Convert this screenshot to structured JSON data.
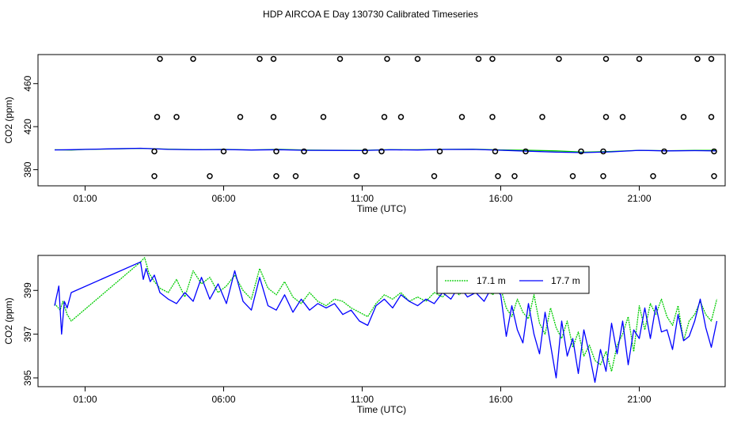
{
  "title": "HDP AIRCOA E  Day 130730  Calibrated Timeseries",
  "colors": {
    "series1": "#00cc00",
    "series2": "#0000ff",
    "axis": "#000000"
  },
  "chart_data": [
    {
      "type": "scatter",
      "xlabel": "Time (UTC)",
      "ylabel": "CO2 (ppm)",
      "xlim": [
        -0.7,
        24.1
      ],
      "ylim": [
        365,
        487
      ],
      "xticks": [
        {
          "v": 1,
          "label": "01:00"
        },
        {
          "v": 6,
          "label": "06:00"
        },
        {
          "v": 11,
          "label": "11:00"
        },
        {
          "v": 16,
          "label": "16:00"
        },
        {
          "v": 21,
          "label": "21:00"
        }
      ],
      "yticks": [
        {
          "v": 380,
          "label": "380"
        },
        {
          "v": 420,
          "label": "420"
        },
        {
          "v": 460,
          "label": "460"
        }
      ],
      "calibration_points": [
        {
          "x": 3.7,
          "y": 483
        },
        {
          "x": 4.9,
          "y": 483
        },
        {
          "x": 7.3,
          "y": 483
        },
        {
          "x": 7.8,
          "y": 483
        },
        {
          "x": 10.2,
          "y": 483
        },
        {
          "x": 11.9,
          "y": 483
        },
        {
          "x": 13.0,
          "y": 483
        },
        {
          "x": 15.2,
          "y": 483
        },
        {
          "x": 15.7,
          "y": 483
        },
        {
          "x": 18.1,
          "y": 483
        },
        {
          "x": 19.8,
          "y": 483
        },
        {
          "x": 21.0,
          "y": 483
        },
        {
          "x": 23.1,
          "y": 483
        },
        {
          "x": 23.6,
          "y": 483
        },
        {
          "x": 3.6,
          "y": 429
        },
        {
          "x": 4.3,
          "y": 429
        },
        {
          "x": 6.6,
          "y": 429
        },
        {
          "x": 7.8,
          "y": 429
        },
        {
          "x": 9.6,
          "y": 429
        },
        {
          "x": 11.8,
          "y": 429
        },
        {
          "x": 12.4,
          "y": 429
        },
        {
          "x": 14.6,
          "y": 429
        },
        {
          "x": 15.7,
          "y": 429
        },
        {
          "x": 17.5,
          "y": 429
        },
        {
          "x": 19.8,
          "y": 429
        },
        {
          "x": 20.4,
          "y": 429
        },
        {
          "x": 22.6,
          "y": 429
        },
        {
          "x": 23.6,
          "y": 429
        },
        {
          "x": 3.5,
          "y": 397
        },
        {
          "x": 6.0,
          "y": 397
        },
        {
          "x": 7.9,
          "y": 397
        },
        {
          "x": 8.9,
          "y": 397
        },
        {
          "x": 11.1,
          "y": 397
        },
        {
          "x": 11.7,
          "y": 397
        },
        {
          "x": 13.8,
          "y": 397
        },
        {
          "x": 15.8,
          "y": 397
        },
        {
          "x": 16.9,
          "y": 397
        },
        {
          "x": 18.9,
          "y": 397
        },
        {
          "x": 19.7,
          "y": 397
        },
        {
          "x": 21.9,
          "y": 397
        },
        {
          "x": 23.7,
          "y": 397
        },
        {
          "x": 3.5,
          "y": 374
        },
        {
          "x": 5.5,
          "y": 374
        },
        {
          "x": 7.9,
          "y": 374
        },
        {
          "x": 8.6,
          "y": 374
        },
        {
          "x": 10.8,
          "y": 374
        },
        {
          "x": 13.6,
          "y": 374
        },
        {
          "x": 15.9,
          "y": 374
        },
        {
          "x": 16.5,
          "y": 374
        },
        {
          "x": 18.6,
          "y": 374
        },
        {
          "x": 19.7,
          "y": 374
        },
        {
          "x": 21.5,
          "y": 374
        },
        {
          "x": 23.7,
          "y": 374
        }
      ],
      "series": [
        {
          "x": [
            -0.1,
            0.5,
            1.0,
            2.0,
            3.0,
            4.0,
            5.0,
            6.0,
            7.0,
            8.0,
            9.0,
            10.0,
            11.0,
            12.0,
            13.0,
            14.0,
            15.0,
            16.0,
            17.0,
            18.0,
            19.0,
            20.0,
            21.0,
            22.0,
            23.0,
            23.8
          ],
          "y": [
            398.5,
            398.3,
            398.8,
            399.3,
            399.8,
            399.1,
            398.6,
            398.9,
            398.4,
            398.9,
            398.2,
            398.1,
            398.0,
            398.6,
            398.5,
            398.9,
            399.0,
            398.4,
            398.1,
            397.5,
            396.3,
            397.0,
            398.0,
            397.6,
            397.9,
            398.0
          ],
          "color": "#00cc00"
        },
        {
          "x": [
            -0.1,
            0.5,
            1.0,
            2.0,
            3.0,
            4.0,
            5.0,
            6.0,
            7.0,
            8.0,
            9.0,
            10.0,
            11.0,
            12.0,
            13.0,
            14.0,
            15.0,
            16.0,
            17.0,
            18.0,
            19.0,
            20.0,
            21.0,
            22.0,
            23.0,
            23.8
          ],
          "y": [
            398.4,
            398.6,
            398.9,
            399.4,
            399.9,
            398.9,
            398.5,
            398.7,
            398.3,
            398.6,
            398.0,
            397.9,
            397.8,
            398.5,
            398.3,
            398.8,
            398.9,
            398.1,
            397.2,
            396.3,
            395.9,
            396.6,
            398.0,
            397.5,
            397.7,
            397.5
          ],
          "color": "#0000ff"
        }
      ]
    },
    {
      "type": "line",
      "xlabel": "Time (UTC)",
      "ylabel": "CO2 (ppm)",
      "xlim": [
        -0.7,
        24.1
      ],
      "ylim": [
        394.6,
        400.6
      ],
      "xticks": [
        {
          "v": 1,
          "label": "01:00"
        },
        {
          "v": 6,
          "label": "06:00"
        },
        {
          "v": 11,
          "label": "11:00"
        },
        {
          "v": 16,
          "label": "16:00"
        },
        {
          "v": 21,
          "label": "21:00"
        }
      ],
      "yticks": [
        {
          "v": 395,
          "label": "395"
        },
        {
          "v": 397,
          "label": "397"
        },
        {
          "v": 399,
          "label": "399"
        }
      ],
      "legend_position": "top-right",
      "series": [
        {
          "name": "17.1 m",
          "color": "#00cc00",
          "style": "dotted",
          "x": [
            -0.1,
            0.1,
            0.2,
            0.35,
            0.5,
            3.0,
            3.15,
            3.3,
            3.5,
            3.7,
            4.0,
            4.3,
            4.6,
            4.9,
            5.2,
            5.5,
            5.8,
            6.1,
            6.4,
            6.7,
            7.0,
            7.3,
            7.6,
            7.9,
            8.2,
            8.5,
            8.8,
            9.1,
            9.4,
            9.7,
            10.0,
            10.3,
            10.6,
            10.9,
            11.2,
            11.5,
            11.8,
            12.1,
            12.4,
            12.7,
            13.0,
            13.3,
            13.6,
            13.9,
            14.2,
            14.5,
            14.8,
            15.1,
            15.4,
            15.7,
            16.0,
            16.2,
            16.4,
            16.6,
            16.8,
            17.0,
            17.2,
            17.4,
            17.6,
            17.8,
            18.0,
            18.2,
            18.4,
            18.6,
            18.8,
            19.0,
            19.2,
            19.4,
            19.6,
            19.8,
            20.0,
            20.2,
            20.4,
            20.6,
            20.8,
            21.0,
            21.2,
            21.4,
            21.6,
            21.8,
            22.0,
            22.2,
            22.4,
            22.6,
            22.8,
            23.0,
            23.2,
            23.4,
            23.6,
            23.8
          ],
          "y": [
            398.4,
            398.1,
            398.5,
            397.9,
            397.6,
            400.3,
            400.5,
            399.8,
            399.4,
            399.1,
            398.9,
            399.5,
            398.7,
            399.9,
            399.3,
            399.6,
            398.9,
            399.2,
            399.7,
            399.0,
            398.6,
            400.0,
            399.1,
            398.8,
            399.4,
            398.7,
            398.4,
            398.9,
            398.5,
            398.3,
            398.6,
            398.5,
            398.2,
            398.0,
            397.8,
            398.4,
            398.8,
            398.6,
            398.9,
            398.5,
            398.7,
            398.5,
            398.9,
            398.7,
            399.1,
            398.8,
            399.2,
            398.9,
            399.3,
            398.8,
            399.1,
            398.2,
            397.8,
            398.6,
            398.0,
            397.7,
            398.8,
            397.5,
            397.0,
            398.2,
            397.3,
            396.8,
            397.6,
            396.4,
            397.1,
            396.0,
            396.5,
            395.8,
            395.6,
            396.2,
            395.3,
            396.5,
            397.0,
            397.8,
            396.2,
            398.3,
            397.2,
            398.4,
            397.9,
            398.6,
            397.8,
            397.4,
            398.3,
            396.7,
            397.6,
            397.9,
            398.5,
            397.9,
            397.6,
            398.6
          ],
          "color_key": "series1"
        },
        {
          "name": "17.7 m",
          "color": "#0000ff",
          "style": "solid",
          "x": [
            -0.1,
            0.05,
            0.15,
            0.25,
            0.35,
            0.5,
            3.0,
            3.1,
            3.2,
            3.35,
            3.5,
            3.7,
            4.0,
            4.3,
            4.6,
            4.9,
            5.2,
            5.5,
            5.8,
            6.1,
            6.4,
            6.7,
            7.0,
            7.3,
            7.6,
            7.9,
            8.2,
            8.5,
            8.8,
            9.1,
            9.4,
            9.7,
            10.0,
            10.3,
            10.6,
            10.9,
            11.2,
            11.5,
            11.8,
            12.1,
            12.4,
            12.7,
            13.0,
            13.3,
            13.6,
            13.9,
            14.2,
            14.5,
            14.8,
            15.1,
            15.4,
            15.7,
            16.0,
            16.2,
            16.4,
            16.6,
            16.8,
            17.0,
            17.2,
            17.4,
            17.6,
            17.8,
            18.0,
            18.2,
            18.4,
            18.6,
            18.8,
            19.0,
            19.2,
            19.4,
            19.6,
            19.8,
            20.0,
            20.2,
            20.4,
            20.6,
            20.8,
            21.0,
            21.2,
            21.4,
            21.6,
            21.8,
            22.0,
            22.2,
            22.4,
            22.6,
            22.8,
            23.0,
            23.2,
            23.4,
            23.6,
            23.8
          ],
          "y": [
            398.3,
            399.2,
            397.0,
            398.5,
            398.2,
            398.9,
            400.3,
            399.5,
            400.0,
            399.4,
            399.7,
            398.9,
            398.6,
            398.4,
            398.9,
            398.5,
            399.6,
            398.6,
            399.3,
            398.4,
            399.9,
            398.5,
            398.1,
            399.6,
            398.3,
            398.1,
            398.8,
            398.0,
            398.6,
            398.1,
            398.4,
            398.2,
            398.4,
            397.9,
            398.1,
            397.6,
            397.4,
            398.3,
            398.6,
            398.2,
            398.8,
            398.5,
            398.3,
            398.6,
            398.4,
            398.9,
            398.6,
            399.2,
            398.7,
            398.9,
            398.5,
            399.2,
            398.8,
            396.9,
            398.3,
            397.2,
            396.6,
            398.4,
            397.0,
            396.1,
            398.0,
            396.5,
            395.0,
            397.6,
            396.0,
            396.8,
            395.2,
            397.2,
            396.1,
            394.8,
            396.3,
            395.3,
            397.5,
            396.1,
            397.6,
            395.6,
            397.2,
            396.8,
            398.2,
            396.8,
            398.3,
            397.1,
            397.2,
            396.3,
            397.9,
            396.7,
            396.9,
            397.6,
            398.6,
            397.3,
            396.4,
            397.6
          ],
          "color_key": "series2"
        }
      ]
    }
  ]
}
